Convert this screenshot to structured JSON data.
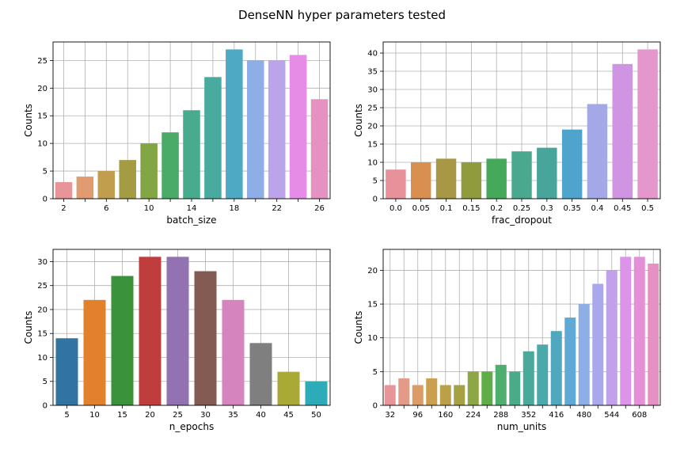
{
  "title": "DenseNN hyper parameters tested",
  "chart_data": [
    {
      "type": "bar",
      "xlabel": "batch_size",
      "ylabel": "Counts",
      "categories": [
        "2",
        "4",
        "6",
        "8",
        "10",
        "12",
        "14",
        "16",
        "18",
        "20",
        "22",
        "24",
        "26"
      ],
      "tick_labels": [
        "2",
        "",
        "6",
        "",
        "10",
        "",
        "14",
        "",
        "18",
        "",
        "22",
        "",
        "26"
      ],
      "values": [
        3,
        4,
        5,
        7,
        10,
        12,
        16,
        22,
        27,
        25,
        25,
        26,
        18
      ],
      "ylim": [
        0,
        28.35
      ],
      "yticks": [
        0,
        5,
        10,
        15,
        20,
        25
      ],
      "grid": true,
      "colors": [
        "#e8959a",
        "#e09b71",
        "#c19d4e",
        "#a49c43",
        "#82a644",
        "#49ab67",
        "#48ab8e",
        "#49aa9f",
        "#4ea9c4",
        "#8dafe6",
        "#bca4ea",
        "#e68be6",
        "#e592c3"
      ]
    },
    {
      "type": "bar",
      "xlabel": "frac_dropout",
      "ylabel": "Counts",
      "categories": [
        "0.0",
        "0.05",
        "0.1",
        "0.15",
        "0.2",
        "0.25",
        "0.3",
        "0.35",
        "0.4",
        "0.45",
        "0.5"
      ],
      "tick_labels": [
        "0.0",
        "0.05",
        "0.1",
        "0.15",
        "0.2",
        "0.25",
        "0.3",
        "0.35",
        "0.4",
        "0.45",
        "0.5"
      ],
      "values": [
        8,
        10,
        11,
        10,
        11,
        13,
        14,
        19,
        26,
        37,
        41
      ],
      "ylim": [
        0,
        43.05
      ],
      "yticks": [
        0,
        5,
        10,
        15,
        20,
        25,
        30,
        35,
        40
      ],
      "grid": true,
      "colors": [
        "#e8919a",
        "#d98f4f",
        "#a89744",
        "#8f9c3d",
        "#45a85b",
        "#49a88d",
        "#48a59c",
        "#4ea4cc",
        "#a4a8e6",
        "#cf95e3",
        "#e596cc"
      ]
    },
    {
      "type": "bar",
      "xlabel": "n_epochs",
      "ylabel": "Counts",
      "categories": [
        "5",
        "10",
        "15",
        "20",
        "25",
        "30",
        "35",
        "40",
        "45",
        "50"
      ],
      "tick_labels": [
        "5",
        "10",
        "15",
        "20",
        "25",
        "30",
        "35",
        "40",
        "45",
        "50"
      ],
      "values": [
        14,
        22,
        27,
        31,
        31,
        28,
        22,
        13,
        7,
        5
      ],
      "ylim": [
        0,
        32.55
      ],
      "yticks": [
        0,
        5,
        10,
        15,
        20,
        25,
        30
      ],
      "grid": true,
      "colors": [
        "#3274a1",
        "#e1812c",
        "#3a923a",
        "#c03d3e",
        "#9372b2",
        "#845b53",
        "#d684bd",
        "#7f7f7f",
        "#a9aa35",
        "#2eabb8"
      ]
    },
    {
      "type": "bar",
      "xlabel": "num_units",
      "ylabel": "Counts",
      "categories": [
        "32",
        "64",
        "96",
        "128",
        "160",
        "192",
        "224",
        "256",
        "288",
        "320",
        "352",
        "384",
        "416",
        "448",
        "480",
        "512",
        "544",
        "576",
        "608",
        "640"
      ],
      "tick_labels": [
        "32",
        "",
        "96",
        "",
        "160",
        "",
        "224",
        "",
        "288",
        "",
        "352",
        "",
        "416",
        "",
        "480",
        "",
        "544",
        "",
        "608",
        ""
      ],
      "values": [
        3,
        4,
        3,
        4,
        3,
        3,
        5,
        5,
        6,
        5,
        8,
        9,
        11,
        13,
        15,
        18,
        20,
        22,
        22,
        21
      ],
      "ylim": [
        0,
        23.1
      ],
      "yticks": [
        0,
        5,
        10,
        15,
        20
      ],
      "grid": true,
      "colors": [
        "#e8959a",
        "#e39a86",
        "#dc9c67",
        "#cc9f4f",
        "#bba048",
        "#a5a145",
        "#8ca744",
        "#5ead48",
        "#4fad6e",
        "#4aab89",
        "#4aaa9a",
        "#4ca9ab",
        "#50a8bf",
        "#60a8d6",
        "#8eaee8",
        "#aaa8ec",
        "#c2a1ec",
        "#dc93ea",
        "#e68fd9",
        "#e592c3"
      ]
    }
  ]
}
